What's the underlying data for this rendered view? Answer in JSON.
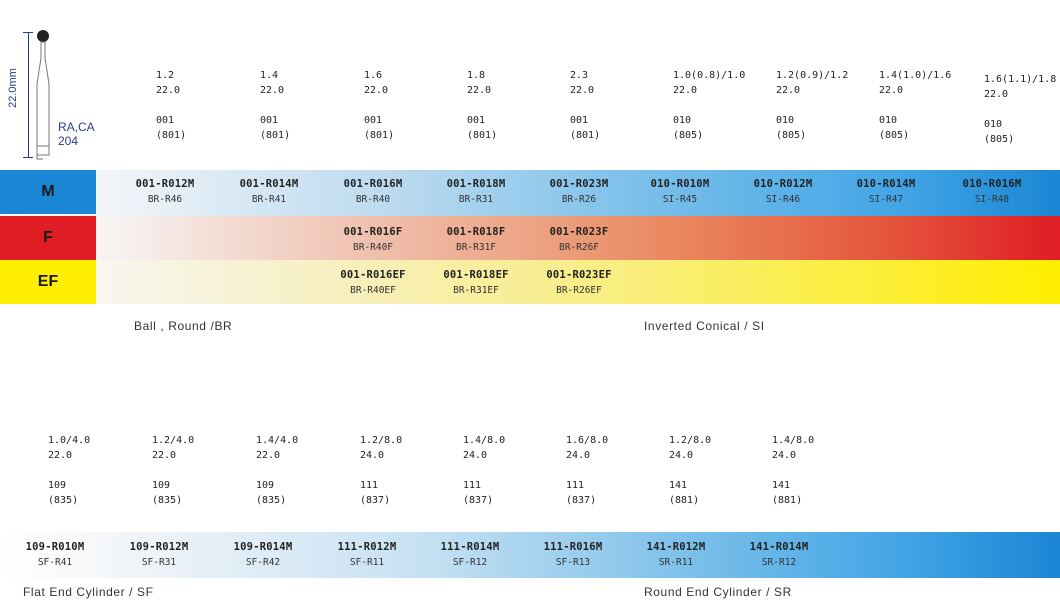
{
  "shank": {
    "type_label": "RA,CA",
    "type_code": "204",
    "length_label": "22.0mm"
  },
  "grades": {
    "m": "M",
    "f": "F",
    "ef": "EF"
  },
  "colors": {
    "blue_band": "#1a86d4",
    "red_band": "#e01d24",
    "yellow_band": "#ffee00",
    "mark": "#1f2a8c"
  },
  "top_row": [
    {
      "size": "1.2",
      "length": "22.0",
      "shape": "001",
      "iso": "(801)",
      "m_code": "001-R012M",
      "m_ref": "BR-R46",
      "f_code": "",
      "f_ref": "",
      "ef_code": "",
      "ef_ref": ""
    },
    {
      "size": "1.4",
      "length": "22.0",
      "shape": "001",
      "iso": "(801)",
      "m_code": "001-R014M",
      "m_ref": "BR-R41",
      "f_code": "",
      "f_ref": "",
      "ef_code": "",
      "ef_ref": ""
    },
    {
      "size": "1.6",
      "length": "22.0",
      "shape": "001",
      "iso": "(801)",
      "m_code": "001-R016M",
      "m_ref": "BR-R40",
      "f_code": "001-R016F",
      "f_ref": "BR-R40F",
      "ef_code": "001-R016EF",
      "ef_ref": "BR-R40EF"
    },
    {
      "size": "1.8",
      "length": "22.0",
      "shape": "001",
      "iso": "(801)",
      "m_code": "001-R018M",
      "m_ref": "BR-R31",
      "f_code": "001-R018F",
      "f_ref": "BR-R31F",
      "ef_code": "001-R018EF",
      "ef_ref": "BR-R31EF"
    },
    {
      "size": "2.3",
      "length": "22.0",
      "shape": "001",
      "iso": "(801)",
      "m_code": "001-R023M",
      "m_ref": "BR-R26",
      "f_code": "001-R023F",
      "f_ref": "BR-R26F",
      "ef_code": "001-R023EF",
      "ef_ref": "BR-R26EF"
    },
    {
      "size": "1.0(0.8)/1.0",
      "length": "22.0",
      "shape": "010",
      "iso": "(805)",
      "m_code": "010-R010M",
      "m_ref": "SI-R45",
      "f_code": "",
      "f_ref": "",
      "ef_code": "",
      "ef_ref": ""
    },
    {
      "size": "1.2(0.9)/1.2",
      "length": "22.0",
      "shape": "010",
      "iso": "(805)",
      "m_code": "010-R012M",
      "m_ref": "SI-R46",
      "f_code": "",
      "f_ref": "",
      "ef_code": "",
      "ef_ref": ""
    },
    {
      "size": "1.4(1.0)/1.6",
      "length": "22.0",
      "shape": "010",
      "iso": "(805)",
      "m_code": "010-R014M",
      "m_ref": "SI-R47",
      "f_code": "",
      "f_ref": "",
      "ef_code": "",
      "ef_ref": ""
    },
    {
      "size": "1.6(1.1)/1.8",
      "length": "22.0",
      "shape": "010",
      "iso": "(805)",
      "m_code": "010-R016M",
      "m_ref": "SI-R48",
      "f_code": "",
      "f_ref": "",
      "ef_code": "",
      "ef_ref": ""
    }
  ],
  "top_captions": {
    "round": "Ball , Round /BR",
    "inverted": "Inverted Conical / SI"
  },
  "bottom_row": [
    {
      "size": "1.0/4.0",
      "length": "22.0",
      "shape": "109",
      "iso": "(835)",
      "m_code": "109-R010M",
      "m_ref": "SF-R41"
    },
    {
      "size": "1.2/4.0",
      "length": "22.0",
      "shape": "109",
      "iso": "(835)",
      "m_code": "109-R012M",
      "m_ref": "SF-R31"
    },
    {
      "size": "1.4/4.0",
      "length": "22.0",
      "shape": "109",
      "iso": "(835)",
      "m_code": "109-R014M",
      "m_ref": "SF-R42"
    },
    {
      "size": "1.2/8.0",
      "length": "24.0",
      "shape": "111",
      "iso": "(837)",
      "m_code": "111-R012M",
      "m_ref": "SF-R11"
    },
    {
      "size": "1.4/8.0",
      "length": "24.0",
      "shape": "111",
      "iso": "(837)",
      "m_code": "111-R014M",
      "m_ref": "SF-R12"
    },
    {
      "size": "1.6/8.0",
      "length": "24.0",
      "shape": "111",
      "iso": "(837)",
      "m_code": "111-R016M",
      "m_ref": "SF-R13"
    },
    {
      "size": "1.2/8.0",
      "length": "24.0",
      "shape": "141",
      "iso": "(881)",
      "m_code": "141-R012M",
      "m_ref": "SR-R11"
    },
    {
      "size": "1.4/8.0",
      "length": "24.0",
      "shape": "141",
      "iso": "(881)",
      "m_code": "141-R014M",
      "m_ref": "SR-R12"
    }
  ],
  "bottom_captions": {
    "flat": "Flat End Cylinder / SF",
    "round_end": "Round End Cylinder / SR"
  }
}
